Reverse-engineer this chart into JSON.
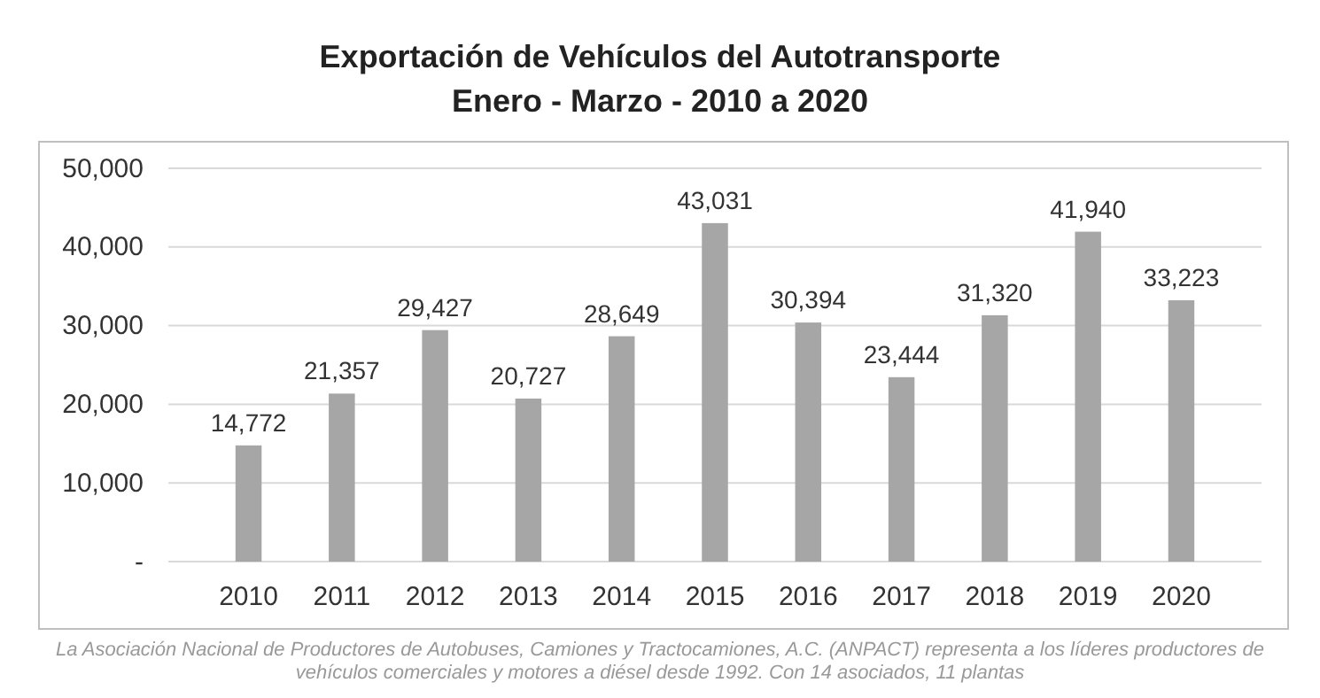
{
  "chart_data": {
    "type": "bar",
    "title": "Exportación de Vehículos del Autotransporte",
    "subtitle": "Enero - Marzo - 2010 a 2020",
    "categories": [
      "2010",
      "2011",
      "2012",
      "2013",
      "2014",
      "2015",
      "2016",
      "2017",
      "2018",
      "2019",
      "2020"
    ],
    "values": [
      14772,
      21357,
      29427,
      20727,
      28649,
      43031,
      30394,
      23444,
      31320,
      41940,
      33223
    ],
    "value_labels": [
      "14,772",
      "21,357",
      "29,427",
      "20,727",
      "28,649",
      "43,031",
      "30,394",
      "23,444",
      "31,320",
      "41,940",
      "33,223"
    ],
    "color": "#a6a6a6",
    "grid": "y",
    "ylim": [
      0,
      50000
    ],
    "yticks": [
      {
        "value": 0,
        "label": "-"
      },
      {
        "value": 10000,
        "label": "10,000"
      },
      {
        "value": 20000,
        "label": "20,000"
      },
      {
        "value": 30000,
        "label": "30,000"
      },
      {
        "value": 40000,
        "label": "40,000"
      },
      {
        "value": 50000,
        "label": "50,000"
      }
    ],
    "annotations": [
      "La Asociación Nacional de Productores de Autobuses, Camiones y Tractocamiones, A.C. (ANPACT) representa a los líderes productores de vehículos comerciales y motores a diésel desde 1992. Con 14 asociados, 11 plantas"
    ]
  }
}
